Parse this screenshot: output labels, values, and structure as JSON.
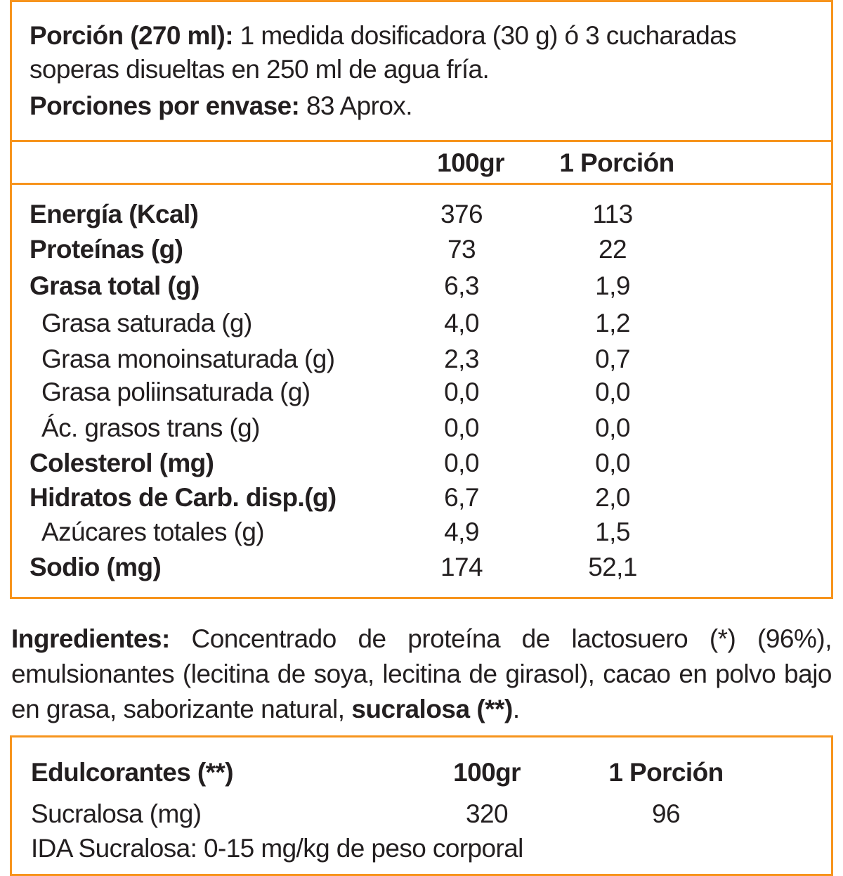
{
  "colors": {
    "border": "#f7941d",
    "text": "#231f20"
  },
  "serving": {
    "label": "Porción (270 ml):",
    "text_line1": " 1 medida dosificadora (30 g) ó 3 cucharadas",
    "text_line2": "soperas disueltas en 250 ml de agua fría.",
    "per_container_label": "Porciones por envase:",
    "per_container_value": " 83 Aprox."
  },
  "table": {
    "headers": [
      "100gr",
      "1 Porción"
    ],
    "rows": [
      {
        "label": "Energía (Kcal)",
        "bold": true,
        "v100": "376",
        "vpor": "113"
      },
      {
        "label": "Proteínas (g)",
        "bold": true,
        "v100": "73",
        "vpor": "22"
      },
      {
        "label": "Grasa total (g)",
        "bold": true,
        "v100": "6,3",
        "vpor": "1,9"
      },
      {
        "label": "Grasa saturada (g)",
        "bold": false,
        "v100": "4,0",
        "vpor": "1,2"
      },
      {
        "label": "Grasa monoinsaturada (g)",
        "bold": false,
        "v100": "2,3",
        "vpor": "0,7"
      },
      {
        "label": "Grasa poliinsaturada (g)",
        "bold": false,
        "v100": "0,0",
        "vpor": "0,0"
      },
      {
        "label": "Ác. grasos trans (g)",
        "bold": false,
        "v100": "0,0",
        "vpor": "0,0"
      },
      {
        "label": "Colesterol (mg)",
        "bold": true,
        "v100": "0,0",
        "vpor": "0,0"
      },
      {
        "label": "Hidratos de Carb. disp.(g)",
        "bold": true,
        "v100": "6,7",
        "vpor": "2,0"
      },
      {
        "label": "Azúcares totales (g)",
        "bold": false,
        "v100": "4,9",
        "vpor": "1,5"
      },
      {
        "label": "Sodio (mg)",
        "bold": true,
        "v100": "174",
        "vpor": "52,1"
      }
    ]
  },
  "ingredients": {
    "label": "Ingredientes:",
    "text": " Concentrado de proteína de lactosuero (*) (96%), emulsionantes (lecitina de soya, lecitina de girasol), cacao en polvo bajo en grasa, saborizante natural, ",
    "bold_tail": "sucralosa (**)",
    "end": "."
  },
  "sweeteners": {
    "title": "Edulcorantes (**)",
    "headers": [
      "100gr",
      "1 Porción"
    ],
    "row": {
      "label": "Sucralosa (mg)",
      "v100": "320",
      "vpor": "96"
    },
    "footnote_partial": "IDA Sucralosa: 0-15 mg/kg de peso corporal"
  }
}
